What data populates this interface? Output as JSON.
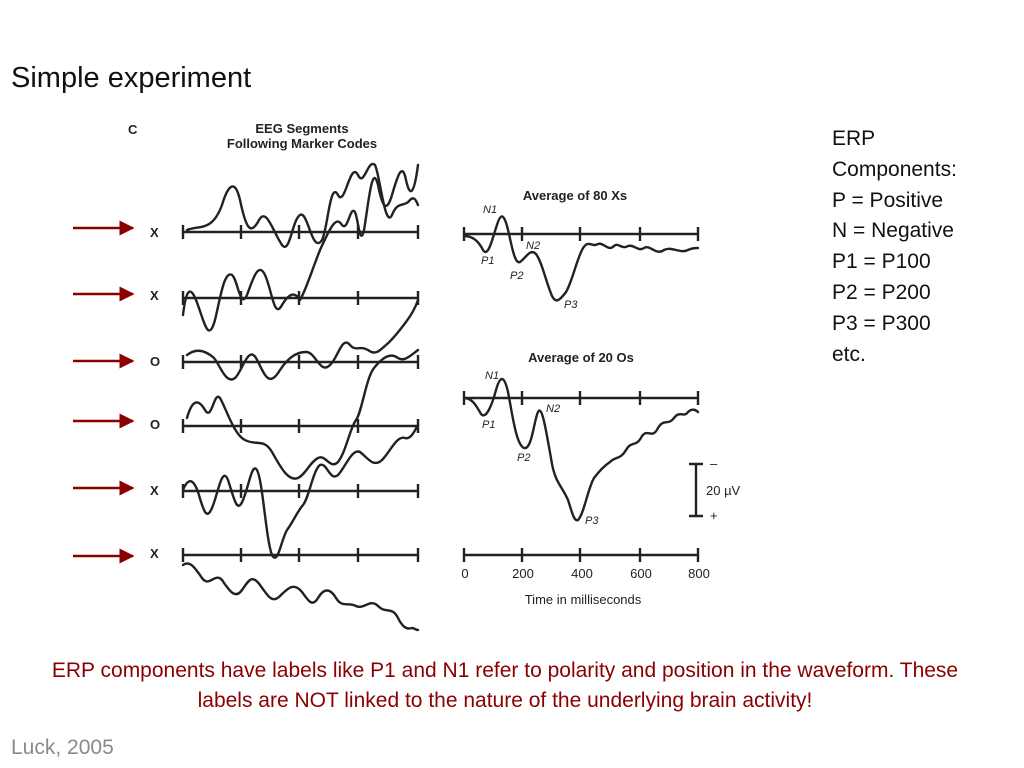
{
  "slide": {
    "title": "Simple experiment",
    "citation": "Luck, 2005",
    "caption": "ERP components have labels like P1 and N1 refer to polarity and position in the waveform. These labels are NOT linked to the nature of the underlying brain activity!"
  },
  "components": {
    "lines": [
      "ERP",
      "Components:",
      "P = Positive",
      "N = Negative",
      "P1 = P100",
      "P2 = P200",
      "P3 = P300",
      "etc."
    ]
  },
  "figure": {
    "panel_label": "C",
    "segments_title_line1": "EEG Segments",
    "segments_title_line2": "Following Marker Codes",
    "segment_markers": [
      "X",
      "X",
      "O",
      "O",
      "X",
      "X"
    ],
    "average_x_title": "Average of 80 Xs",
    "average_o_title": "Average of 20 Os",
    "component_labels": {
      "n1": "N1",
      "p1": "P1",
      "n2": "N2",
      "p2": "P2",
      "p3": "P3"
    },
    "scale_bar": {
      "minus": "–",
      "value": "20 µV",
      "plus": "+"
    },
    "time_axis": {
      "ticks": [
        "0",
        "200",
        "400",
        "600",
        "800"
      ],
      "label": "Time in milliseconds"
    },
    "colors": {
      "arrow": "#8b0000",
      "trace": "#222222"
    }
  }
}
